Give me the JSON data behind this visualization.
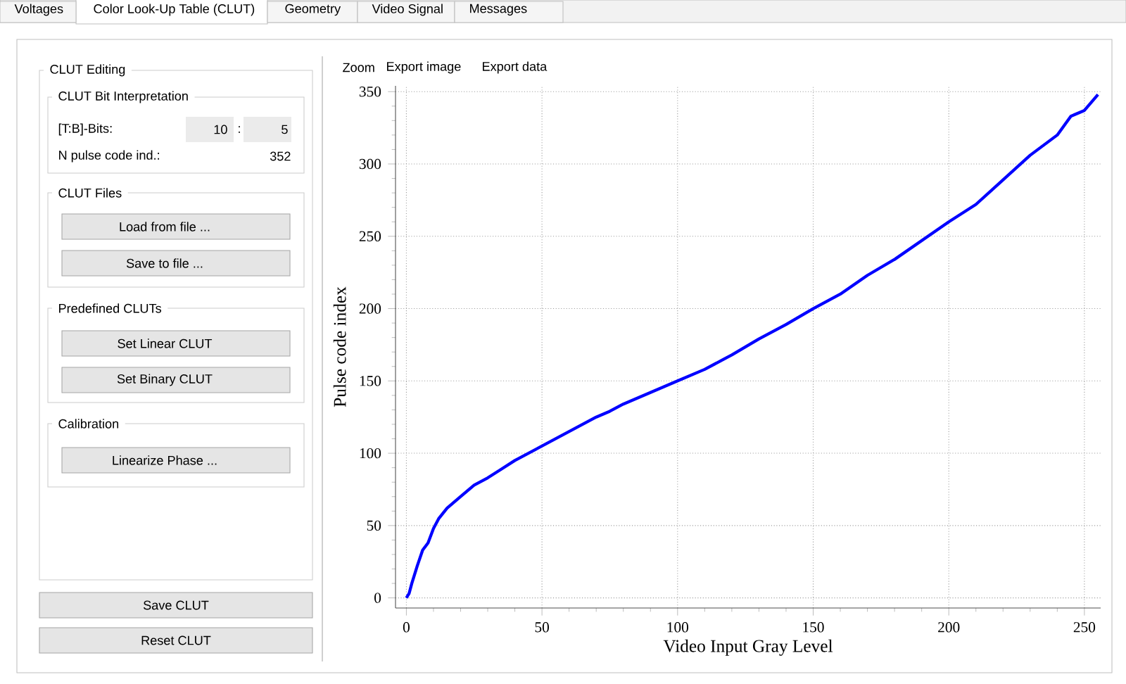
{
  "chart_data": [
    {
      "type": "other",
      "annotations": [
        "Voltages",
        "Color Look-Up Table (CLUT)",
        "Geometry",
        "Video Signal",
        "Messages",
        "CLUT Editing",
        "CLUT Bit Interpretation",
        "[T:B]-Bits:",
        "10",
        ":",
        "5",
        "N pulse code ind.:",
        "352",
        "CLUT Files",
        "Load from file ...",
        "Save to file ...",
        "Predefined CLUTs",
        "Set Linear CLUT",
        "Set Binary CLUT",
        "Calibration",
        "Linearize Phase ...",
        "Save CLUT",
        "Reset CLUT"
      ]
    },
    {
      "type": "line",
      "xlabel": "Video Input Gray Level",
      "ylabel": "Pulse code index",
      "annotations": [
        "Zoom",
        "Export image",
        "Export data"
      ],
      "xlim": [
        -4,
        256
      ],
      "ylim": [
        -7,
        354
      ],
      "xticks": [
        0,
        50,
        100,
        150,
        200,
        250
      ],
      "yticks": [
        0,
        50,
        100,
        150,
        200,
        250,
        300,
        350
      ],
      "grid": true,
      "series": [
        {
          "color": "#0000ff",
          "x": [
            0,
            1,
            2,
            4,
            6,
            8,
            10,
            12,
            15,
            20,
            25,
            30,
            35,
            40,
            45,
            50,
            55,
            60,
            65,
            70,
            75,
            80,
            85,
            90,
            95,
            100,
            110,
            120,
            130,
            140,
            150,
            160,
            170,
            180,
            190,
            200,
            210,
            220,
            230,
            240,
            245,
            250,
            255
          ],
          "values": [
            0,
            3,
            10,
            22,
            33,
            38,
            48,
            55,
            62,
            70,
            78,
            83,
            89,
            95,
            100,
            105,
            110,
            115,
            120,
            125,
            129,
            134,
            138,
            142,
            146,
            150,
            158,
            168,
            179,
            189,
            200,
            210,
            223,
            234,
            247,
            260,
            272,
            289,
            306,
            320,
            333,
            337,
            348
          ]
        }
      ]
    }
  ]
}
